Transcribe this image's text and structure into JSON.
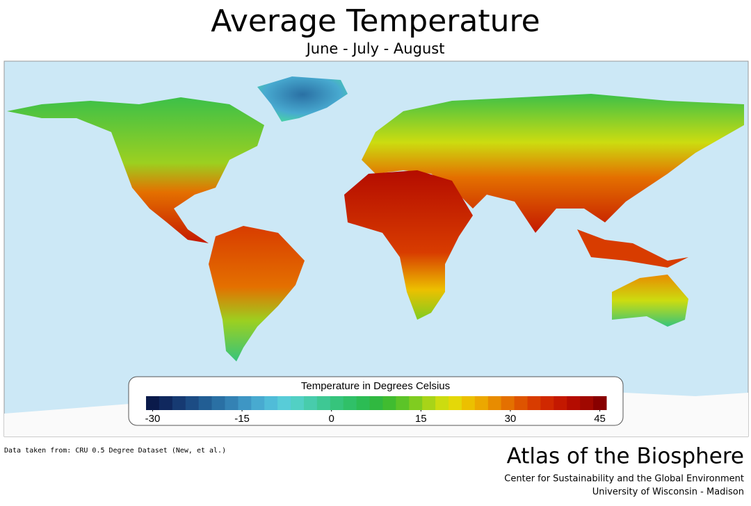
{
  "header": {
    "title": "Average  Temperature",
    "subtitle": "June - July - August"
  },
  "legend": {
    "title": "Temperature in Degrees Celsius",
    "range": [
      -30,
      45
    ],
    "ticks": [
      -30,
      -15,
      0,
      15,
      30,
      45
    ],
    "colors": [
      "#0a1a4a",
      "#10285e",
      "#163a72",
      "#1c4c84",
      "#225e94",
      "#2a70a4",
      "#3482b4",
      "#3e96c4",
      "#48aad0",
      "#50bcd8",
      "#58ccd8",
      "#52d0c4",
      "#48ccac",
      "#3ec894",
      "#36c47c",
      "#30c068",
      "#2cbc54",
      "#30b840",
      "#40bc30",
      "#5cc428",
      "#80cc20",
      "#a8d418",
      "#ccdc10",
      "#e4d808",
      "#ecc000",
      "#eca800",
      "#e88c00",
      "#e47000",
      "#de5400",
      "#d83c00",
      "#d02800",
      "#c41800",
      "#b40c00",
      "#a00800",
      "#880000"
    ]
  },
  "footer": {
    "source": "Data taken from: CRU 0.5 Degree Dataset (New, et al.)",
    "brand": "Atlas of the Biosphere",
    "center": "Center for Sustainability and the Global Environment",
    "university": "University of Wisconsin - Madison"
  }
}
